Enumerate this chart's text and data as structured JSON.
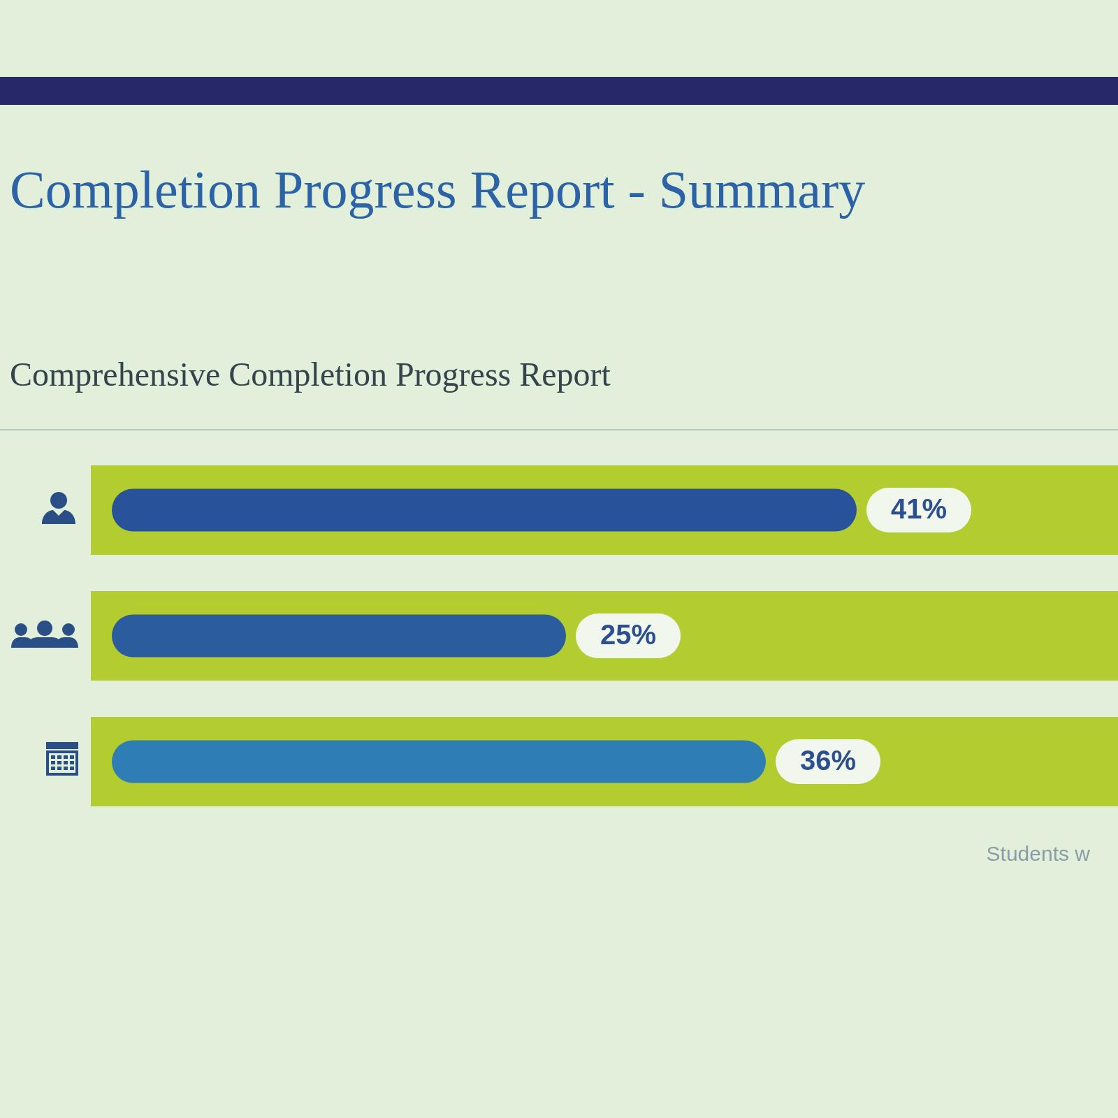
{
  "chart_data": {
    "type": "bar",
    "orientation": "horizontal",
    "title": "Completion Progress Report - Summary",
    "subtitle": "Comprehensive Completion Progress Report",
    "categories": [
      null,
      null,
      null
    ],
    "values": [
      41,
      25,
      36
    ],
    "colors": [
      "#28529a",
      "#2b5c9e",
      "#2f7db5"
    ],
    "value_labels": [
      "41%",
      "25%",
      "36%"
    ],
    "tick_labels": false,
    "annotations": [
      "Students w"
    ]
  }
}
